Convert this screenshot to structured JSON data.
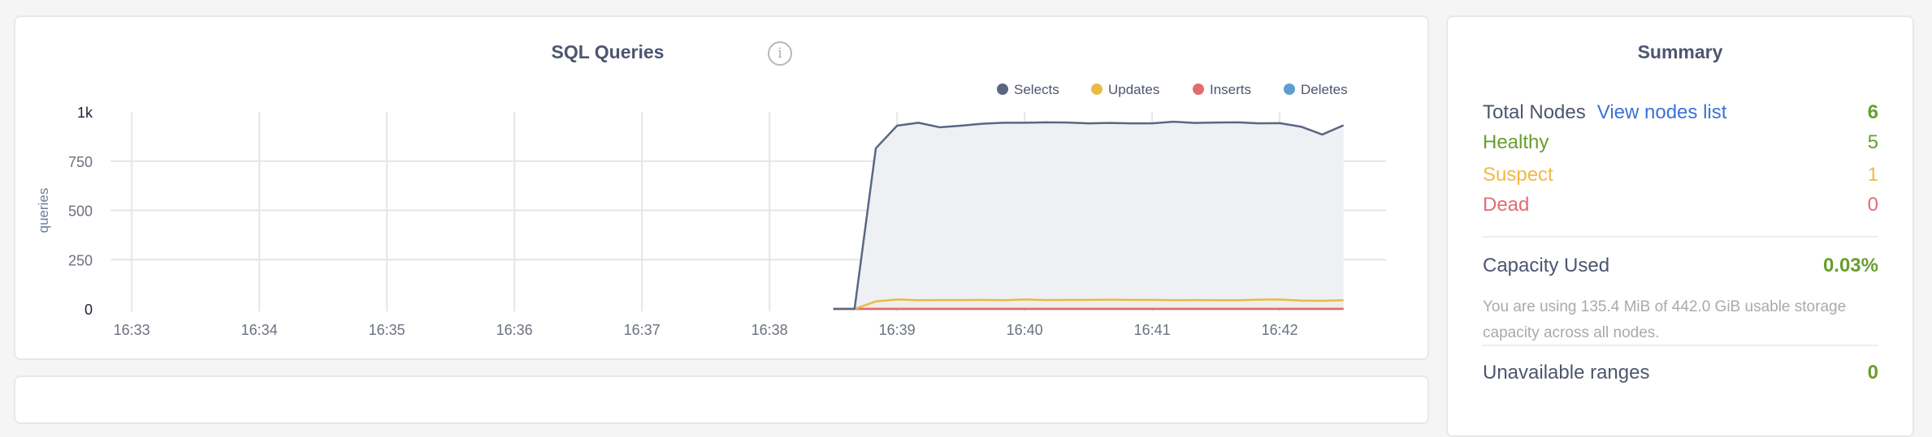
{
  "chart_panel": {
    "title": "SQL Queries",
    "info_icon": "info-icon"
  },
  "chart_data": {
    "type": "area",
    "title": "SQL Queries",
    "ylabel": "queries",
    "xlabel": "",
    "ylim": [
      0,
      1000
    ],
    "y_ticks": [
      "0",
      "250",
      "500",
      "750",
      "1k"
    ],
    "y_tick_values": [
      0,
      250,
      500,
      750,
      1000
    ],
    "x_ticks": [
      "16:33",
      "16:34",
      "16:35",
      "16:36",
      "16:37",
      "16:38",
      "16:39",
      "16:40",
      "16:41",
      "16:42"
    ],
    "xlim": [
      "16:32:50",
      "16:42:50"
    ],
    "grid": true,
    "legend_position": "top-right",
    "x": [
      "16:38:30",
      "16:38:40",
      "16:38:50",
      "16:39:00",
      "16:39:10",
      "16:39:20",
      "16:39:30",
      "16:39:40",
      "16:39:50",
      "16:40:00",
      "16:40:10",
      "16:40:20",
      "16:40:30",
      "16:40:40",
      "16:40:50",
      "16:41:00",
      "16:41:10",
      "16:41:20",
      "16:41:30",
      "16:41:40",
      "16:41:50",
      "16:42:00",
      "16:42:10",
      "16:42:20",
      "16:42:30"
    ],
    "series": [
      {
        "name": "Selects",
        "color": "#5b6682",
        "values": [
          0,
          0,
          815,
          930,
          945,
          922,
          930,
          940,
          945,
          945,
          947,
          946,
          942,
          944,
          942,
          942,
          950,
          944,
          946,
          947,
          942,
          943,
          925,
          885,
          932
        ]
      },
      {
        "name": "Updates",
        "color": "#e8bb45",
        "values": [
          0,
          0,
          38,
          48,
          44,
          45,
          45,
          46,
          44,
          48,
          45,
          46,
          46,
          47,
          46,
          46,
          44,
          45,
          44,
          44,
          47,
          48,
          42,
          41,
          44
        ]
      },
      {
        "name": "Inserts",
        "color": "#e26d6d",
        "values": [
          0,
          0,
          0,
          0,
          0,
          0,
          0,
          0,
          0,
          0,
          0,
          0,
          0,
          0,
          0,
          0,
          0,
          0,
          0,
          0,
          0,
          0,
          0,
          0,
          0
        ]
      },
      {
        "name": "Deletes",
        "color": "#5e9ed3",
        "values": [
          0,
          0,
          0,
          0,
          0,
          0,
          0,
          0,
          0,
          0,
          0,
          0,
          0,
          0,
          0,
          0,
          0,
          0,
          0,
          0,
          0,
          0,
          0,
          0,
          0
        ]
      }
    ]
  },
  "summary": {
    "title": "Summary",
    "total_nodes_label": "Total Nodes",
    "view_nodes_link": "View nodes list",
    "total_nodes_value": "6",
    "healthy_label": "Healthy",
    "healthy_value": "5",
    "suspect_label": "Suspect",
    "suspect_value": "1",
    "dead_label": "Dead",
    "dead_value": "0",
    "capacity_label": "Capacity Used",
    "capacity_value": "0.03%",
    "capacity_description": "You are using 135.4 MiB of 442.0 GiB usable storage capacity across all nodes.",
    "unavailable_label": "Unavailable ranges",
    "unavailable_value": "0",
    "colors": {
      "green": "#6a9e2e",
      "yellow": "#f0b948",
      "red": "#e06d73",
      "link": "#3a72d8"
    }
  }
}
